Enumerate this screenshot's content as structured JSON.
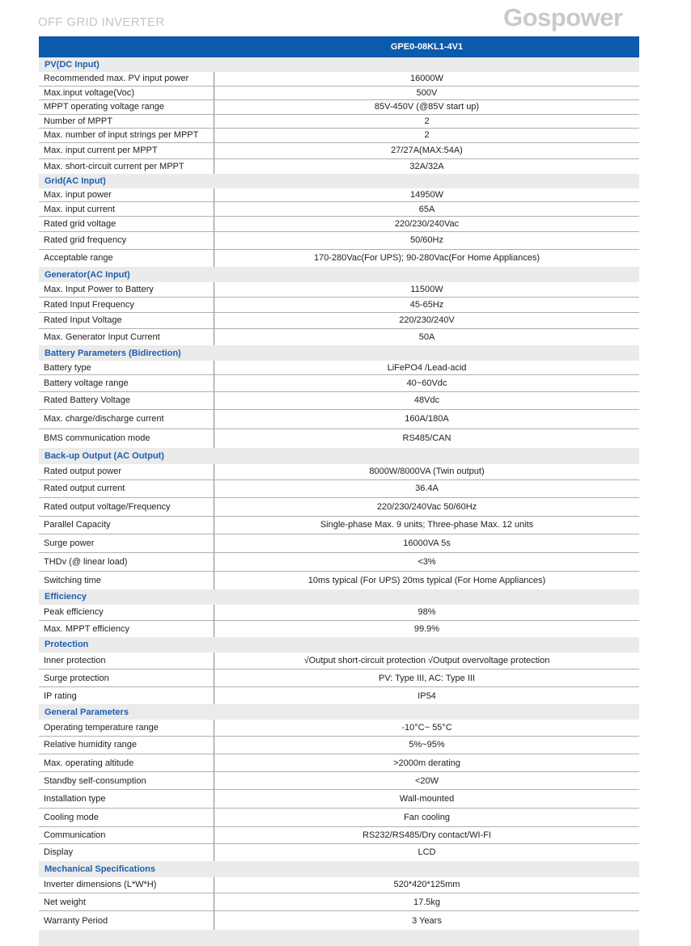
{
  "doc_title": "OFF GRID INVERTER",
  "logo": "Gospower",
  "model": "GPE0-08KL1-4V1",
  "sections": [
    {
      "title": "PV(DC Input)",
      "rows": [
        [
          "Recommended max. PV input power",
          "16000W"
        ],
        [
          "Max.input voltage(Voc)",
          "500V"
        ],
        [
          "MPPT operating voltage range",
          "85V-450V (@85V start up)"
        ],
        [
          "Number of MPPT",
          "2"
        ],
        [
          "Max. number of input strings per MPPT",
          "2"
        ],
        [
          "Max. input current per MPPT",
          "27/27A(MAX:54A)"
        ],
        [
          "Max. short-circuit current per MPPT",
          "32A/32A"
        ]
      ]
    },
    {
      "title": "Grid(AC Input)",
      "rows": [
        [
          "Max. input power",
          "14950W"
        ],
        [
          "Max. input current",
          "65A"
        ],
        [
          "Rated grid voltage",
          "220/230/240Vac"
        ],
        [
          "Rated grid frequency",
          "50/60Hz"
        ],
        [
          "Acceptable range",
          "170-280Vac(For UPS);   90-280Vac(For Home Appliances)"
        ]
      ]
    },
    {
      "title": "Generator(AC Input)",
      "rows": [
        [
          "Max. Input Power to Battery",
          "11500W"
        ],
        [
          "Rated Input Frequency",
          "45-65Hz"
        ],
        [
          "Rated Input Voltage",
          "220/230/240V"
        ],
        [
          "Max. Generator Input Current",
          "50A"
        ]
      ]
    },
    {
      "title": "Battery Parameters (Bidirection)",
      "rows": [
        [
          "Battery type",
          "LiFePO4 /Lead-acid"
        ],
        [
          "Battery voltage range",
          "40~60Vdc"
        ],
        [
          "Rated Battery Voltage",
          "48Vdc"
        ],
        [
          "Max. charge/discharge current",
          "160A/180A"
        ],
        [
          "BMS communication mode",
          "RS485/CAN"
        ]
      ]
    },
    {
      "title": "Back-up Output (AC Output)",
      "rows": [
        [
          "Rated output power",
          "8000W/8000VA (Twin output)"
        ],
        [
          "Rated output current",
          "36.4A"
        ],
        [
          "Rated output voltage/Frequency",
          "220/230/240Vac 50/60Hz"
        ],
        [
          "Parallel Capacity",
          "Single-phase Max. 9 units;  Three-phase Max. 12 units"
        ],
        [
          "Surge power",
          "16000VA 5s"
        ],
        [
          "THDv (@ linear load)",
          "<3%"
        ],
        [
          "Switching time",
          "10ms typical (For UPS) 20ms typical (For Home Appliances)"
        ]
      ]
    },
    {
      "title": "Efficiency",
      "rows": [
        [
          "Peak efficiency",
          "98%"
        ],
        [
          "Max. MPPT efficiency",
          "99.9%"
        ]
      ]
    },
    {
      "title": "Protection",
      "rows": [
        [
          "Inner protection",
          "√Output short-circuit protection  √Output overvoltage protection"
        ],
        [
          "Surge protection",
          "PV: Type III, AC: Type III"
        ],
        [
          "IP rating",
          "IP54"
        ]
      ]
    },
    {
      "title": "General Parameters",
      "rows": [
        [
          "Operating temperature range",
          "-10°C~ 55°C"
        ],
        [
          "Relative humidity range",
          "5%~95%"
        ],
        [
          "Max. operating altitude",
          ">2000m derating"
        ],
        [
          "Standby self-consumption",
          "<20W"
        ],
        [
          "Installation type",
          "Wall-mounted"
        ],
        [
          "Cooling mode",
          "Fan cooling"
        ],
        [
          "Communication",
          "RS232/RS485/Dry contact/WI-FI"
        ],
        [
          "Display",
          "LCD"
        ]
      ]
    },
    {
      "title": "Mechanical Specifications",
      "rows": [
        [
          "Inverter dimensions (L*W*H)",
          "520*420*125mm"
        ],
        [
          "Net weight",
          "17.5kg"
        ],
        [
          "Warranty Period",
          "3 Years"
        ]
      ]
    }
  ]
}
